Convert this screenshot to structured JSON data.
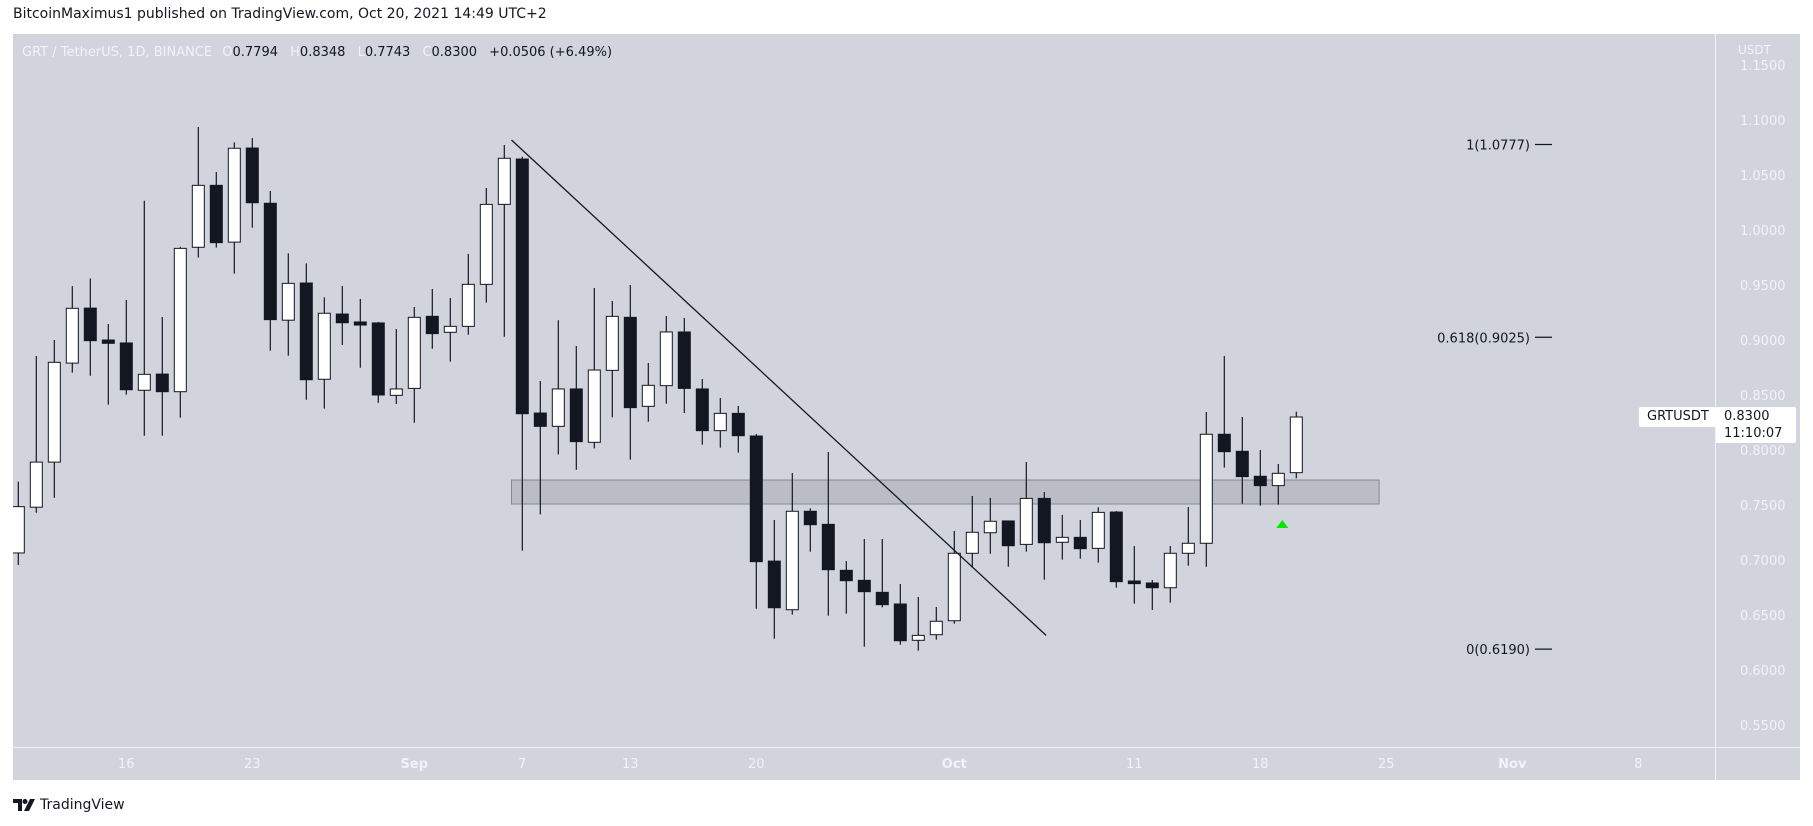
{
  "publisher": {
    "text": "BitcoinMaximus1 published on TradingView.com, Oct 20, 2021 14:49 UTC+2"
  },
  "legend": {
    "symbol": "GRT / TetherUS, 1D, BINANCE",
    "open_key": "O",
    "open": "0.7794",
    "high_key": "H",
    "high": "0.8348",
    "low_key": "L",
    "low": "0.7743",
    "close_key": "C",
    "close": "0.8300",
    "change": "+0.0506 (+6.49%)"
  },
  "price_axis": {
    "currency": "USDT",
    "ticks": [
      "1.1500",
      "1.1000",
      "1.0500",
      "1.0000",
      "0.9500",
      "0.9000",
      "0.8500",
      "0.8000",
      "0.7500",
      "0.7000",
      "0.6500",
      "0.6000",
      "0.5500"
    ]
  },
  "last_price": {
    "symbol": "GRTUSDT",
    "price": "0.8300",
    "countdown": "11:10:07"
  },
  "time_axis": {
    "labels": [
      {
        "text": "16",
        "i": 6,
        "bold": false
      },
      {
        "text": "23",
        "i": 13,
        "bold": false
      },
      {
        "text": "Sep",
        "i": 22,
        "bold": true
      },
      {
        "text": "7",
        "i": 28,
        "bold": false
      },
      {
        "text": "13",
        "i": 34,
        "bold": false
      },
      {
        "text": "20",
        "i": 41,
        "bold": false
      },
      {
        "text": "Oct",
        "i": 52,
        "bold": true
      },
      {
        "text": "11",
        "i": 62,
        "bold": false
      },
      {
        "text": "18",
        "i": 69,
        "bold": false
      },
      {
        "text": "25",
        "i": 76,
        "bold": false
      },
      {
        "text": "Nov",
        "i": 83,
        "bold": true
      },
      {
        "text": "8",
        "i": 90,
        "bold": false
      }
    ]
  },
  "footer": {
    "brand": "TradingView"
  },
  "colors": {
    "pane": "#d1d4dc",
    "up": "#ffffff",
    "down": "#131722",
    "outline": "#131722",
    "zone": "#b2b5be",
    "zone_border": "#868993",
    "arrow": "#00e600"
  },
  "chart_data": {
    "type": "candlestick",
    "title": "GRT / TetherUS, 1D, BINANCE",
    "xlabel": "",
    "ylabel": "USDT",
    "ylim": [
      0.525,
      1.16
    ],
    "grid": false,
    "first_date": "2021-08-10",
    "candles": [
      [
        0.7064,
        0.7712,
        0.6955,
        0.7485
      ],
      [
        0.748,
        0.8855,
        0.743,
        0.789
      ],
      [
        0.789,
        0.9,
        0.7566,
        0.8797
      ],
      [
        0.879,
        0.949,
        0.8703,
        0.9288
      ],
      [
        0.929,
        0.956,
        0.8675,
        0.8994
      ],
      [
        0.9,
        0.9146,
        0.8412,
        0.897
      ],
      [
        0.8973,
        0.9364,
        0.8503,
        0.8548
      ],
      [
        0.8543,
        1.0266,
        0.813,
        0.8688
      ],
      [
        0.869,
        0.9209,
        0.813,
        0.853
      ],
      [
        0.853,
        0.9848,
        0.8294,
        0.9833
      ],
      [
        0.9843,
        1.0936,
        0.975,
        1.0406
      ],
      [
        1.0406,
        1.0527,
        0.984,
        0.9885
      ],
      [
        0.989,
        1.0797,
        0.9603,
        1.0743
      ],
      [
        1.0745,
        1.0836,
        1.0021,
        1.0248
      ],
      [
        1.0243,
        1.0355,
        0.8903,
        0.9185
      ],
      [
        0.918,
        0.9788,
        0.8857,
        0.9515
      ],
      [
        0.9518,
        0.9697,
        0.8457,
        0.8639
      ],
      [
        0.8643,
        0.9388,
        0.8376,
        0.9243
      ],
      [
        0.9236,
        0.9491,
        0.8955,
        0.9157
      ],
      [
        0.9164,
        0.9373,
        0.8748,
        0.9136
      ],
      [
        0.9155,
        0.9164,
        0.8429,
        0.85
      ],
      [
        0.8497,
        0.91,
        0.8418,
        0.8555
      ],
      [
        0.856,
        0.93,
        0.8248,
        0.9206
      ],
      [
        0.9215,
        0.9464,
        0.8921,
        0.9058
      ],
      [
        0.907,
        0.9382,
        0.8803,
        0.9124
      ],
      [
        0.9124,
        0.9782,
        0.9048,
        0.9506
      ],
      [
        0.9506,
        1.0382,
        0.934,
        1.0233
      ],
      [
        1.0233,
        1.0773,
        0.903,
        1.0652
      ],
      [
        1.0645,
        1.0666,
        0.7085,
        0.833
      ],
      [
        0.8336,
        0.8627,
        0.7415,
        0.8215
      ],
      [
        0.8215,
        0.918,
        0.796,
        0.8555
      ],
      [
        0.8555,
        0.8945,
        0.782,
        0.8076
      ],
      [
        0.807,
        0.9473,
        0.8015,
        0.8727
      ],
      [
        0.8724,
        0.9355,
        0.8297,
        0.9215
      ],
      [
        0.9206,
        0.95,
        0.7912,
        0.8385
      ],
      [
        0.8397,
        0.8791,
        0.8257,
        0.8588
      ],
      [
        0.8585,
        0.9218,
        0.8421,
        0.9073
      ],
      [
        0.9073,
        0.92,
        0.8336,
        0.856
      ],
      [
        0.8555,
        0.8645,
        0.8048,
        0.8176
      ],
      [
        0.8176,
        0.8473,
        0.8021,
        0.8333
      ],
      [
        0.8333,
        0.84,
        0.7976,
        0.813
      ],
      [
        0.8127,
        0.8145,
        0.6557,
        0.6985
      ],
      [
        0.699,
        0.7364,
        0.6285,
        0.6566
      ],
      [
        0.6548,
        0.7791,
        0.6503,
        0.7443
      ],
      [
        0.7443,
        0.747,
        0.7076,
        0.7321
      ],
      [
        0.7324,
        0.7982,
        0.6494,
        0.6912
      ],
      [
        0.6906,
        0.699,
        0.6512,
        0.6812
      ],
      [
        0.6815,
        0.7191,
        0.6212,
        0.6712
      ],
      [
        0.6706,
        0.7191,
        0.657,
        0.6594
      ],
      [
        0.66,
        0.6782,
        0.623,
        0.6266
      ],
      [
        0.627,
        0.6664,
        0.6176,
        0.6315
      ],
      [
        0.6321,
        0.6573,
        0.6276,
        0.6443
      ],
      [
        0.6448,
        0.7264,
        0.6421,
        0.7061
      ],
      [
        0.7061,
        0.7582,
        0.693,
        0.7252
      ],
      [
        0.7248,
        0.7564,
        0.7057,
        0.7352
      ],
      [
        0.7355,
        0.7355,
        0.6939,
        0.713
      ],
      [
        0.7142,
        0.789,
        0.7076,
        0.756
      ],
      [
        0.756,
        0.7618,
        0.6821,
        0.7157
      ],
      [
        0.7161,
        0.741,
        0.7003,
        0.7206
      ],
      [
        0.7206,
        0.7364,
        0.7012,
        0.7103
      ],
      [
        0.7106,
        0.7479,
        0.6976,
        0.7433
      ],
      [
        0.7436,
        0.7445,
        0.6748,
        0.6803
      ],
      [
        0.6809,
        0.7127,
        0.6603,
        0.6785
      ],
      [
        0.6791,
        0.6818,
        0.6545,
        0.6748
      ],
      [
        0.6748,
        0.7127,
        0.6612,
        0.7061
      ],
      [
        0.7061,
        0.7482,
        0.6948,
        0.7152
      ],
      [
        0.7152,
        0.8346,
        0.6939,
        0.8143
      ],
      [
        0.8143,
        0.8855,
        0.784,
        0.7985
      ],
      [
        0.7988,
        0.83,
        0.7512,
        0.7758
      ],
      [
        0.7761,
        0.8,
        0.7494,
        0.7676
      ],
      [
        0.7676,
        0.7873,
        0.7503,
        0.7788
      ],
      [
        0.7794,
        0.8348,
        0.7743,
        0.83
      ]
    ],
    "candle_format": [
      "open",
      "high",
      "low",
      "close"
    ],
    "annotations": {
      "trendline": {
        "from": {
          "i": 27.4,
          "price": 1.0818
        },
        "to": {
          "i": 57.1,
          "price": 0.6315
        }
      },
      "support_zone": {
        "from_i": 27.4,
        "to_i": 75.6,
        "top": 0.7727,
        "bottom": 0.7509
      },
      "fib_levels": [
        {
          "label": "1(1.0777)",
          "price": 1.0777
        },
        {
          "label": "0.618(0.9025)",
          "price": 0.9025
        },
        {
          "label": "0(0.6190)",
          "price": 0.619
        }
      ],
      "arrow_up": {
        "i": 70,
        "price": 0.7327
      }
    }
  }
}
